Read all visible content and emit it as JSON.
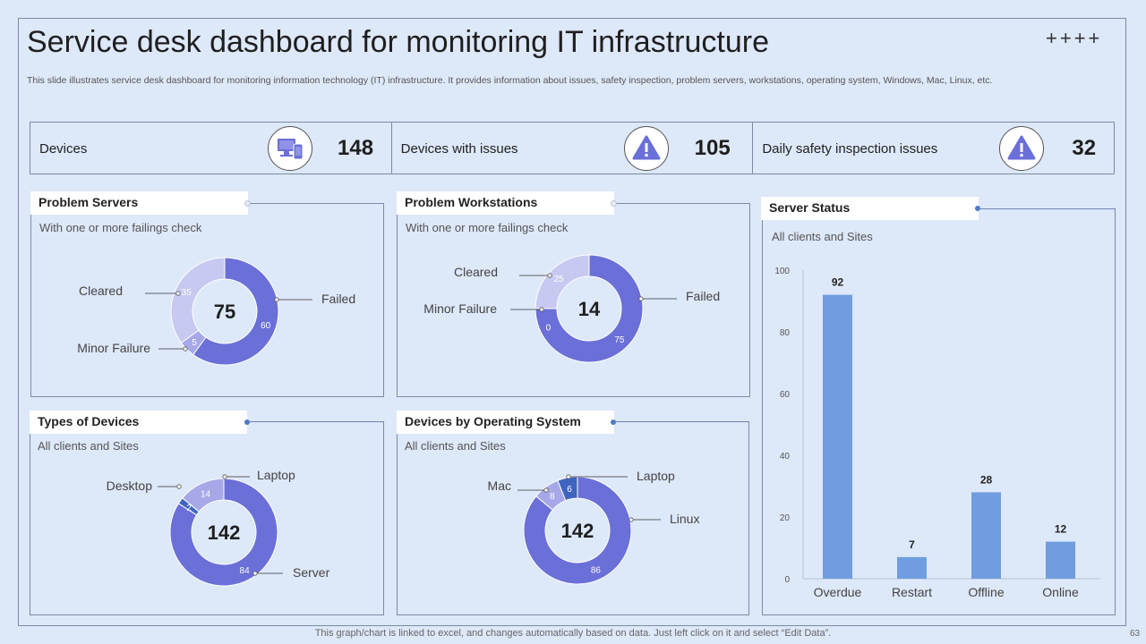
{
  "header": {
    "title": "Service desk dashboard for monitoring IT infrastructure",
    "decoration": "++++",
    "subtitle": "This slide illustrates service desk dashboard for monitoring information technology (IT) infrastructure. It provides information about issues, safety inspection, problem servers, workstations, operating system, Windows, Mac, Linux, etc."
  },
  "kpis": [
    {
      "label": "Devices",
      "value": "148",
      "icon": "devices-icon"
    },
    {
      "label": "Devices with issues",
      "value": "105",
      "icon": "warning-icon"
    },
    {
      "label": "Daily safety inspection issues",
      "value": "32",
      "icon": "warning-icon"
    }
  ],
  "colors": {
    "accent": "#6b6fd8",
    "light": "#a6a8e8",
    "lighter": "#c8c9f1",
    "blue": "#4a79c7",
    "bar": "#6f9de0",
    "background": "#dde8f8"
  },
  "footer": {
    "note": "This graph/chart is linked to excel,  and changes automatically based on data. Just left click on it and select “Edit Data”.",
    "page": "63"
  },
  "chart_data": [
    {
      "type": "pie",
      "id": "problem_servers",
      "title": "Problem Servers",
      "subtitle": "With one or more failings check",
      "total": "75",
      "slices": [
        {
          "label": "Failed",
          "value": 60
        },
        {
          "label": "Minor Failure",
          "value": 5
        },
        {
          "label": "Cleared",
          "value": 35
        }
      ]
    },
    {
      "type": "pie",
      "id": "problem_workstations",
      "title": "Problem Workstations",
      "subtitle": "With one or more failings check",
      "total": "14",
      "slices": [
        {
          "label": "Failed",
          "value": 75
        },
        {
          "label": "Minor Failure",
          "value": 0
        },
        {
          "label": "Cleared",
          "value": 25
        }
      ]
    },
    {
      "type": "pie",
      "id": "types_of_devices",
      "title": "Types of Devices",
      "subtitle": "All clients and Sites",
      "total": "142",
      "slices": [
        {
          "label": "Server",
          "value": 84
        },
        {
          "label": "Desktop",
          "value": 14
        },
        {
          "label": "Laptop",
          "value": 2
        }
      ]
    },
    {
      "type": "pie",
      "id": "devices_by_os",
      "title": "Devices by Operating System",
      "subtitle": "All clients and Sites",
      "total": "142",
      "slices": [
        {
          "label": "Linux",
          "value": 86
        },
        {
          "label": "Mac",
          "value": 8
        },
        {
          "label": "Laptop",
          "value": 6
        }
      ]
    },
    {
      "type": "bar",
      "id": "server_status",
      "title": "Server Status",
      "subtitle": "All clients and Sites",
      "categories": [
        "Overdue",
        "Restart",
        "Offline",
        "Online"
      ],
      "values": [
        92,
        7,
        28,
        12
      ],
      "ylim": [
        0,
        100
      ],
      "yticks": [
        "0",
        "20",
        "40",
        "60",
        "80",
        "100"
      ]
    }
  ]
}
